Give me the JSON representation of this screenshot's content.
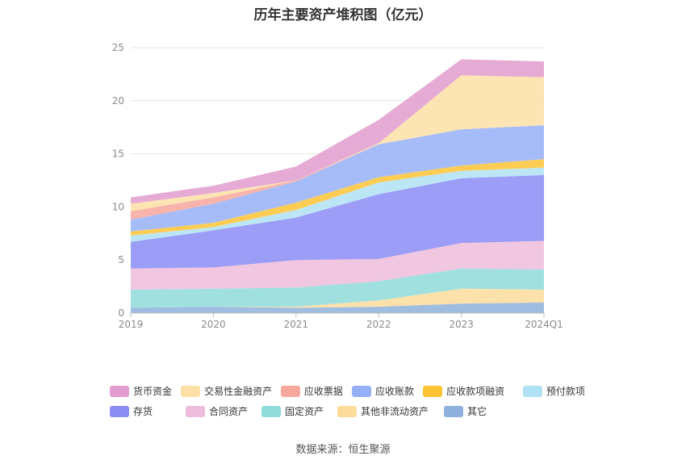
{
  "title": "历年主要资产堆积图（亿元）",
  "source": "数据来源：恒生聚源",
  "chart_data": {
    "type": "area",
    "stacked": true,
    "categories": [
      "2019",
      "2020",
      "2021",
      "2022",
      "2023",
      "2024Q1"
    ],
    "ylim": [
      0,
      25
    ],
    "yticks": [
      0,
      5,
      10,
      15,
      20,
      25
    ],
    "grid": true,
    "legend_position": "bottom",
    "series": [
      {
        "name": "其它",
        "color": "#8eb0dc",
        "values": [
          0.5,
          0.6,
          0.5,
          0.6,
          0.9,
          1.0
        ]
      },
      {
        "name": "其他非流动资产",
        "color": "#fddc9b",
        "values": [
          0.0,
          0.0,
          0.1,
          0.6,
          1.4,
          1.2
        ]
      },
      {
        "name": "固定资产",
        "color": "#8fdcd9",
        "values": [
          1.7,
          1.7,
          1.8,
          1.8,
          1.9,
          1.9
        ]
      },
      {
        "name": "合同资产",
        "color": "#edbcdc",
        "values": [
          2.0,
          2.0,
          2.6,
          2.1,
          2.4,
          2.7
        ]
      },
      {
        "name": "存货",
        "color": "#8b8cf4",
        "values": [
          2.5,
          3.5,
          4.0,
          6.1,
          6.1,
          6.2
        ]
      },
      {
        "name": "预付款项",
        "color": "#b0e2f5",
        "values": [
          0.6,
          0.3,
          0.7,
          1.1,
          0.7,
          0.7
        ]
      },
      {
        "name": "应收款项融资",
        "color": "#fdc435",
        "values": [
          0.4,
          0.4,
          0.7,
          0.5,
          0.5,
          0.8
        ]
      },
      {
        "name": "应收账款",
        "color": "#96b0f8",
        "values": [
          1.1,
          1.8,
          2.0,
          3.1,
          3.4,
          3.2
        ]
      },
      {
        "name": "应收票据",
        "color": "#f7a79b",
        "values": [
          0.8,
          0.6,
          0.1,
          0.0,
          0.0,
          0.0
        ]
      },
      {
        "name": "交易性金融资产",
        "color": "#fde0a6",
        "values": [
          0.7,
          0.4,
          0.0,
          0.1,
          5.1,
          4.5
        ]
      },
      {
        "name": "货币资金",
        "color": "#e29cce",
        "values": [
          0.6,
          0.7,
          1.3,
          2.2,
          1.5,
          1.5
        ]
      }
    ],
    "legend_rows": [
      [
        "货币资金",
        "交易性金融资产",
        "应收票据",
        "应收账款",
        "应收款项融资",
        "预付款项"
      ],
      [
        "存货",
        "合同资产",
        "固定资产",
        "其他非流动资产",
        "其它"
      ]
    ]
  }
}
